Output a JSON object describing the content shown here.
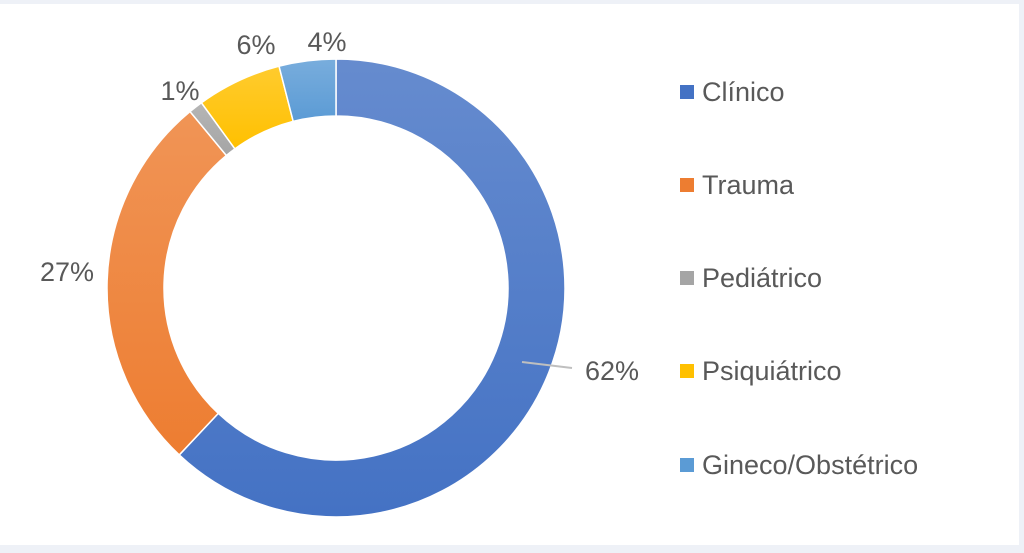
{
  "chart_data": {
    "type": "pie",
    "variant": "donut",
    "legend_position": "right",
    "series": [
      {
        "name": "Clínico",
        "value": 62,
        "label": "62%",
        "color": "#4472C4"
      },
      {
        "name": "Trauma",
        "value": 27,
        "label": "27%",
        "color": "#ED7D31"
      },
      {
        "name": "Pediátrico",
        "value": 1,
        "label": "1%",
        "color": "#A5A5A5"
      },
      {
        "name": "Psiquiátrico",
        "value": 6,
        "label": "6%",
        "color": "#FFC000"
      },
      {
        "name": "Gineco/Obstétrico",
        "value": 4,
        "label": "4%",
        "color": "#5B9BD5"
      }
    ]
  }
}
